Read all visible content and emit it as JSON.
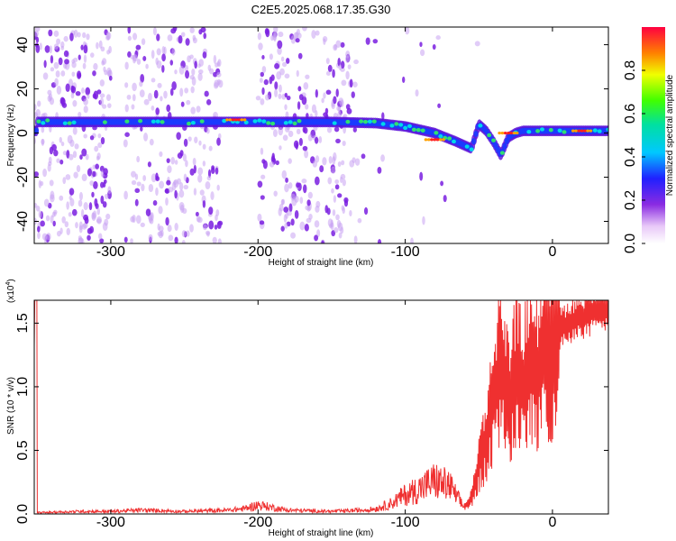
{
  "title": "C2E5.2025.068.17.35.G30",
  "chart_data": [
    {
      "type": "heatmap",
      "title": "C2E5.2025.068.17.35.G30",
      "xlabel": "Height of straight line (km)",
      "ylabel": "Frequency (Hz)",
      "xlim": [
        -352,
        38
      ],
      "ylim": [
        -50,
        48
      ],
      "x_ticks": [
        -300,
        -200,
        -100,
        0
      ],
      "y_ticks": [
        -40,
        -20,
        0,
        20,
        40
      ],
      "colorbar": {
        "label": "Normalized spectral amplitude",
        "range": [
          0,
          1
        ],
        "ticks": [
          0.0,
          0.2,
          0.4,
          0.6,
          0.8
        ]
      },
      "ridge": {
        "x": [
          -350,
          -300,
          -250,
          -200,
          -150,
          -120,
          -100,
          -80,
          -65,
          -55,
          -50,
          -45,
          -40,
          -35,
          -30,
          -25,
          -20,
          0,
          38
        ],
        "y": [
          5,
          5,
          5,
          5,
          5,
          4.5,
          3,
          0,
          -4,
          -7,
          4,
          1,
          -4,
          -10,
          -2,
          0,
          1,
          1,
          1
        ]
      },
      "peaks": [
        {
          "x": -215,
          "y": 6
        },
        {
          "x": -80,
          "y": -3
        },
        {
          "x": -30,
          "y": 0
        },
        {
          "x": 20,
          "y": 1
        }
      ]
    },
    {
      "type": "line",
      "xlabel": "Height of straight line (km)",
      "ylabel": "SNR (10 * v/v)",
      "multiplier_label": "(x10",
      "multiplier_exp": "4",
      "xlim": [
        -352,
        38
      ],
      "ylim": [
        0,
        1.68
      ],
      "x_ticks": [
        -300,
        -200,
        -100,
        0
      ],
      "y_ticks": [
        "0.0",
        "0.5",
        "1.0",
        "1.5"
      ],
      "series": [
        {
          "color": "#ef3030",
          "x": [
            -350,
            -320,
            -300,
            -280,
            -250,
            -220,
            -210,
            -200,
            -190,
            -180,
            -150,
            -130,
            -120,
            -110,
            -100,
            -90,
            -80,
            -70,
            -60,
            -55,
            -50,
            -45,
            -40,
            -35,
            -30,
            -25,
            -20,
            -15,
            -10,
            -5,
            0,
            10,
            20,
            30,
            38
          ],
          "y": [
            0.01,
            0.02,
            0.02,
            0.03,
            0.02,
            0.03,
            0.04,
            0.07,
            0.05,
            0.03,
            0.02,
            0.03,
            0.04,
            0.08,
            0.15,
            0.2,
            0.26,
            0.22,
            0.05,
            0.12,
            0.4,
            0.6,
            0.9,
            1.2,
            0.9,
            1.1,
            1.0,
            1.2,
            1.1,
            1.3,
            1.4,
            1.5,
            1.55,
            1.6,
            1.62
          ]
        }
      ]
    }
  ]
}
